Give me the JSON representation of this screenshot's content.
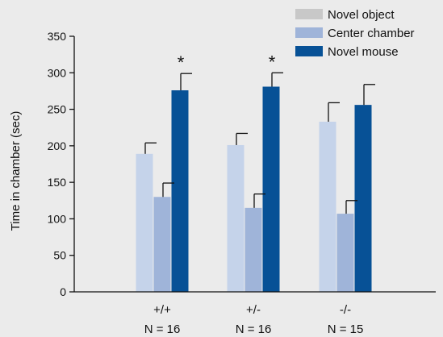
{
  "chart_data": {
    "type": "bar",
    "title": "",
    "xlabel": "",
    "ylabel": "Time in chamber (sec)",
    "ylim": [
      0,
      350
    ],
    "yticks": [
      0,
      50,
      100,
      150,
      200,
      250,
      300,
      350
    ],
    "grid": false,
    "legend_position": "top-right",
    "categories": [
      "+/+",
      "+/-",
      "-/-"
    ],
    "n_labels": [
      "N = 16",
      "N = 16",
      "N = 15"
    ],
    "series": [
      {
        "name": "Novel object",
        "color": "#c5d3ea",
        "legend_color": "#c8c8c8",
        "values": [
          189,
          201,
          233
        ],
        "errors": [
          15,
          16,
          26
        ]
      },
      {
        "name": "Center chamber",
        "color": "#9fb4d9",
        "legend_color": "#9fb4d9",
        "values": [
          130,
          115,
          107
        ],
        "errors": [
          19,
          19,
          18
        ]
      },
      {
        "name": "Novel mouse",
        "color": "#075196",
        "legend_color": "#075196",
        "values": [
          276,
          281,
          256
        ],
        "errors": [
          23,
          19,
          28
        ]
      }
    ],
    "annotations": [
      {
        "category_index": 0,
        "series_index": 2,
        "text": "*"
      },
      {
        "category_index": 1,
        "series_index": 2,
        "text": "*"
      }
    ]
  }
}
